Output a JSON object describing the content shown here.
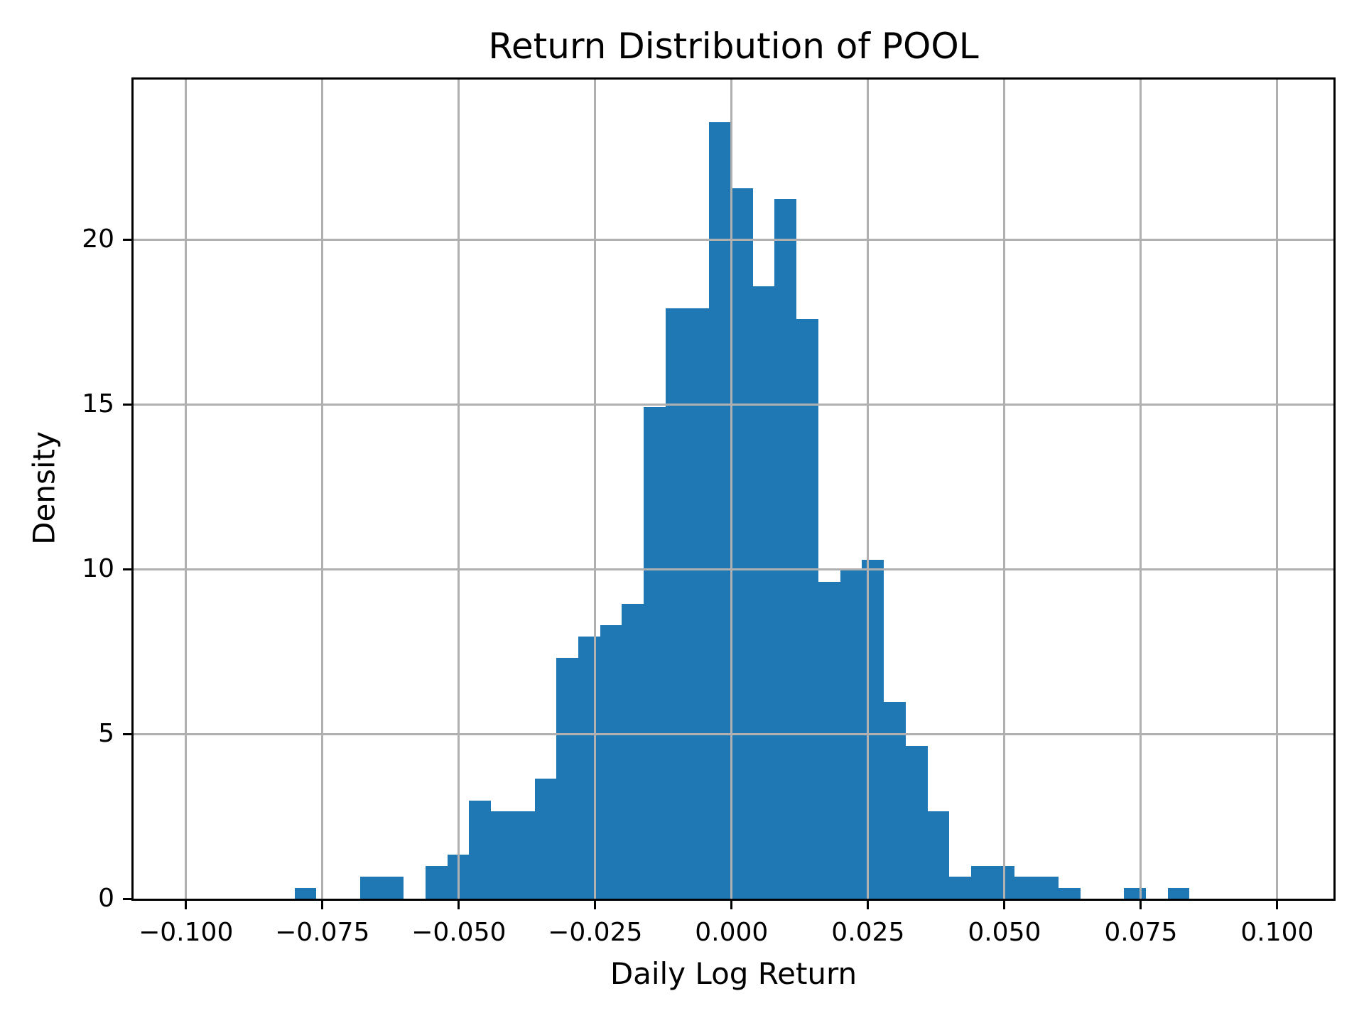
{
  "chart_data": {
    "type": "bar",
    "subtype": "histogram",
    "title": "Return Distribution of POOL",
    "xlabel": "Daily Log Return",
    "ylabel": "Density",
    "bar_color": "#1f77b4",
    "grid_color": "#b0b0b0",
    "spine_color": "#000000",
    "background_color": "#ffffff",
    "grid": true,
    "grid_above_bars": true,
    "legend": "none",
    "xlim": [
      -0.1096,
      0.1103
    ],
    "ylim": [
      0,
      24.85
    ],
    "xticks": [
      -0.1,
      -0.075,
      -0.05,
      -0.025,
      0.0,
      0.025,
      0.05,
      0.075,
      0.1
    ],
    "xtick_labels": [
      "−0.100",
      "−0.075",
      "−0.050",
      "−0.025",
      "0.000",
      "0.025",
      "0.050",
      "0.075",
      "0.100"
    ],
    "yticks": [
      0,
      5,
      10,
      15,
      20
    ],
    "ytick_labels": [
      "0",
      "5",
      "10",
      "15",
      "20"
    ],
    "bin_edges": [
      -0.0801,
      -0.0761,
      -0.0721,
      -0.0681,
      -0.0641,
      -0.0601,
      -0.0561,
      -0.0521,
      -0.0481,
      -0.0441,
      -0.0401,
      -0.0361,
      -0.0321,
      -0.0281,
      -0.0241,
      -0.0201,
      -0.0161,
      -0.0121,
      -0.0081,
      -0.0041,
      -0.0001,
      0.0039,
      0.0079,
      0.0119,
      0.0159,
      0.0199,
      0.0239,
      0.0279,
      0.0319,
      0.0359,
      0.0399,
      0.0439,
      0.0479,
      0.0519,
      0.0559,
      0.0599,
      0.0639,
      0.0679,
      0.0719,
      0.0759,
      0.0799,
      0.0839
    ],
    "densities": [
      0.33,
      0,
      0,
      0.66,
      0.66,
      0,
      1.0,
      1.33,
      2.98,
      2.65,
      2.65,
      3.65,
      7.3,
      7.96,
      8.29,
      8.95,
      14.92,
      17.91,
      17.91,
      23.55,
      21.56,
      18.57,
      21.22,
      17.58,
      9.62,
      9.95,
      10.28,
      5.97,
      4.64,
      2.65,
      0.66,
      1.0,
      1.0,
      0.66,
      0.66,
      0.33,
      0,
      0,
      0.33,
      0,
      0.33
    ]
  }
}
